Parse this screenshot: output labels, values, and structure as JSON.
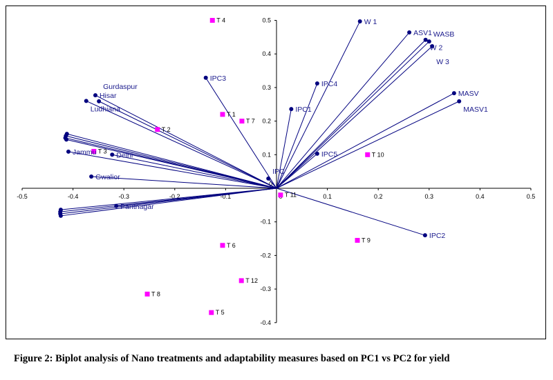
{
  "caption": "Figure 2: Biplot analysis of Nano treatments and adaptability measures based on PC1 vs PC2 for yield",
  "chart_data": {
    "type": "scatter",
    "subtype": "biplot",
    "xlim": [
      -0.5,
      0.5
    ],
    "ylim": [
      -0.4,
      0.5
    ],
    "xticks": [
      -0.5,
      -0.4,
      -0.3,
      -0.2,
      -0.1,
      0,
      0.1,
      0.2,
      0.3,
      0.4,
      0.5
    ],
    "yticks": [
      -0.4,
      -0.3,
      -0.2,
      -0.1,
      0,
      0.1,
      0.2,
      0.3,
      0.4,
      0.5
    ],
    "grid": false,
    "colors": {
      "vectors": "#00007f",
      "vector_labels": "#1a1a8c",
      "treatments": "#ff00ff"
    },
    "treatments": [
      {
        "name": "T 1",
        "x": -0.106,
        "y": 0.22
      },
      {
        "name": "T 2",
        "x": -0.234,
        "y": 0.175
      },
      {
        "name": "T 3",
        "x": -0.359,
        "y": 0.11
      },
      {
        "name": "T 4",
        "x": -0.126,
        "y": 0.5
      },
      {
        "name": "T 5",
        "x": -0.128,
        "y": -0.37
      },
      {
        "name": "T 6",
        "x": -0.106,
        "y": -0.17
      },
      {
        "name": "T 7",
        "x": -0.068,
        "y": 0.2
      },
      {
        "name": "T 8",
        "x": -0.254,
        "y": -0.315
      },
      {
        "name": "T 9",
        "x": 0.159,
        "y": -0.155
      },
      {
        "name": "T 10",
        "x": 0.179,
        "y": 0.1
      },
      {
        "name": "T 11",
        "x": 0.008,
        "y": -0.02
      },
      {
        "name": "T 12",
        "x": -0.069,
        "y": -0.275
      }
    ],
    "vectors": [
      {
        "name": "W 1",
        "x": 0.164,
        "y": 0.497
      },
      {
        "name": "ASV1",
        "x": 0.261,
        "y": 0.464
      },
      {
        "name": "W 2",
        "x": 0.293,
        "y": 0.442
      },
      {
        "name": "WASB",
        "x": 0.3,
        "y": 0.437
      },
      {
        "name": "W 3",
        "x": 0.306,
        "y": 0.423
      },
      {
        "name": "MASV",
        "x": 0.349,
        "y": 0.283
      },
      {
        "name": "MASV1",
        "x": 0.359,
        "y": 0.259
      },
      {
        "name": "IPC4",
        "x": 0.08,
        "y": 0.312
      },
      {
        "name": "IPC1",
        "x": 0.029,
        "y": 0.236
      },
      {
        "name": "IPC5",
        "x": 0.08,
        "y": 0.103
      },
      {
        "name": "IPC3",
        "x": -0.139,
        "y": 0.329
      },
      {
        "name": "IPC2",
        "x": 0.292,
        "y": -0.14
      },
      {
        "name": "IPC",
        "x": -0.016,
        "y": 0.029
      },
      {
        "name": "Hisar",
        "x": -0.356,
        "y": 0.277
      },
      {
        "name": "Ludhiana",
        "x": -0.374,
        "y": 0.26
      },
      {
        "name": "Gurdaspur",
        "x": -0.349,
        "y": 0.259
      },
      {
        "name": "",
        "x": -0.412,
        "y": 0.162
      },
      {
        "name": "",
        "x": -0.414,
        "y": 0.156
      },
      {
        "name": "",
        "x": -0.415,
        "y": 0.15
      },
      {
        "name": "",
        "x": -0.413,
        "y": 0.145
      },
      {
        "name": "Jammu",
        "x": -0.409,
        "y": 0.109
      },
      {
        "name": "Delhi",
        "x": -0.323,
        "y": 0.1
      },
      {
        "name": "Gwalior",
        "x": -0.364,
        "y": 0.035
      },
      {
        "name": "Pantnagar",
        "x": -0.315,
        "y": -0.053
      },
      {
        "name": "",
        "x": -0.424,
        "y": -0.064
      },
      {
        "name": "",
        "x": -0.425,
        "y": -0.07
      },
      {
        "name": "",
        "x": -0.425,
        "y": -0.076
      },
      {
        "name": "",
        "x": -0.424,
        "y": -0.082
      }
    ]
  }
}
